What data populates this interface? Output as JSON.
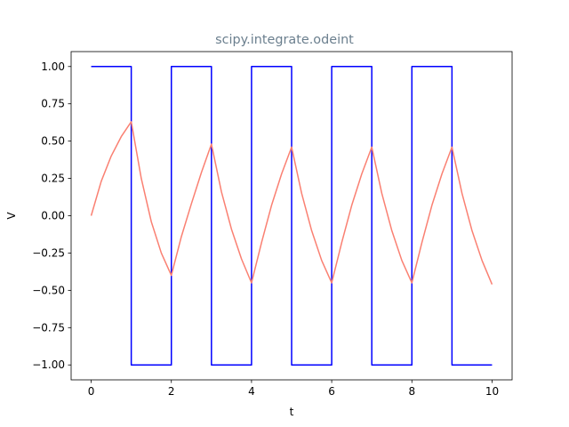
{
  "chart_data": {
    "type": "line",
    "title": "scipy.integrate.odeint",
    "title_color": "#6b7f8e",
    "xlabel": "t",
    "ylabel": "V",
    "xlim": [
      -0.5,
      10.5
    ],
    "ylim": [
      -1.1,
      1.1
    ],
    "x_ticks": [
      0,
      2,
      4,
      6,
      8,
      10
    ],
    "x_tick_labels": [
      "0",
      "2",
      "4",
      "6",
      "8",
      "10"
    ],
    "y_ticks": [
      -1.0,
      -0.75,
      -0.5,
      -0.25,
      0.0,
      0.25,
      0.5,
      0.75,
      1.0
    ],
    "y_tick_labels": [
      "−1.00",
      "−0.75",
      "−0.50",
      "−0.25",
      "0.00",
      "0.25",
      "0.50",
      "0.75",
      "1.00"
    ],
    "grid": false,
    "legend": "none",
    "series": [
      {
        "color": "#0000ff",
        "step": true,
        "x": [
          0,
          1,
          1,
          2,
          2,
          3,
          3,
          4,
          4,
          5,
          5,
          6,
          6,
          7,
          7,
          8,
          8,
          9,
          9,
          10
        ],
        "y": [
          1,
          1,
          -1,
          -1,
          1,
          1,
          -1,
          -1,
          1,
          1,
          -1,
          -1,
          1,
          1,
          -1,
          -1,
          1,
          1,
          -1,
          -1
        ]
      },
      {
        "color": "#fa8072",
        "x": [
          0,
          0.25,
          0.5,
          0.75,
          1.0,
          1.25,
          1.5,
          1.75,
          2.0,
          2.25,
          2.5,
          2.75,
          3.0,
          3.25,
          3.5,
          3.75,
          4.0,
          4.25,
          4.5,
          4.75,
          5.0,
          5.25,
          5.5,
          5.75,
          6.0,
          6.25,
          6.5,
          6.75,
          7.0,
          7.25,
          7.5,
          7.75,
          8.0,
          8.25,
          8.5,
          8.75,
          9.0,
          9.25,
          9.5,
          9.75,
          10.0
        ],
        "y": [
          0.0,
          0.23,
          0.4,
          0.53,
          0.63,
          0.25,
          -0.04,
          -0.25,
          -0.4,
          -0.14,
          0.08,
          0.29,
          0.48,
          0.16,
          -0.09,
          -0.29,
          -0.45,
          -0.18,
          0.07,
          0.28,
          0.46,
          0.15,
          -0.1,
          -0.3,
          -0.45,
          -0.18,
          0.07,
          0.28,
          0.46,
          0.15,
          -0.1,
          -0.3,
          -0.45,
          -0.18,
          0.07,
          0.28,
          0.46,
          0.15,
          -0.1,
          -0.3,
          -0.46
        ]
      }
    ]
  }
}
